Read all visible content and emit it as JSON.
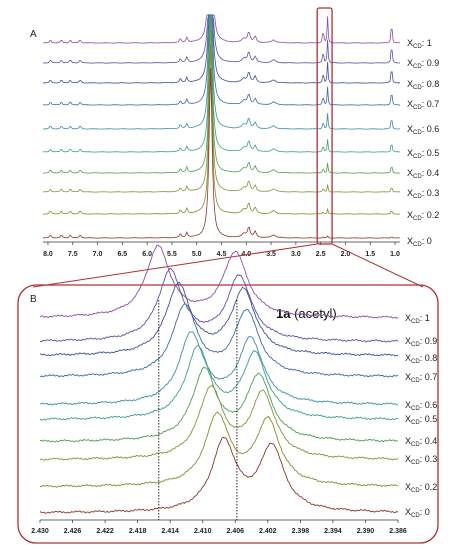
{
  "chart_data": [
    {
      "panel": "A",
      "type": "line",
      "xlim": [
        8.1,
        0.9
      ],
      "xticks": [
        "8.0",
        "7.5",
        "7.0",
        "6.5",
        "6.0",
        "5.5",
        "5.0",
        "4.5",
        "4.0",
        "3.5",
        "3.0",
        "2.5",
        "2.0",
        "1.5",
        "1.0"
      ],
      "series": [
        {
          "name": "1",
          "color": "#8e4ea6"
        },
        {
          "name": "0.9",
          "color": "#5f4fa6"
        },
        {
          "name": "0.8",
          "color": "#3f4f9a"
        },
        {
          "name": "0.7",
          "color": "#3f6aa8"
        },
        {
          "name": "0.6",
          "color": "#3d8ea8"
        },
        {
          "name": "0.5",
          "color": "#3f9f86"
        },
        {
          "name": "0.4",
          "color": "#4f9f56"
        },
        {
          "name": "0.3",
          "color": "#7a9a3a"
        },
        {
          "name": "0.2",
          "color": "#8a8a30"
        },
        {
          "name": "0",
          "color": "#8a3a2a"
        }
      ]
    },
    {
      "panel": "B",
      "type": "line",
      "title_bold": "1a",
      "title_rest": " (acetyl)",
      "xlim": [
        2.43,
        2.386
      ],
      "xticks": [
        "2.430",
        "2.426",
        "2.422",
        "2.418",
        "2.414",
        "2.410",
        "2.406",
        "2.402",
        "2.398",
        "2.394",
        "2.390",
        "2.386"
      ],
      "dotted_lines_x": [
        2.4154,
        2.4058
      ],
      "peaks": [
        {
          "label": "1",
          "color": "#8e4ea6",
          "p1": 2.4155,
          "p2": 2.406
        },
        {
          "label": "0.9",
          "color": "#5f4fa6",
          "p1": 2.414,
          "p2": 2.4055
        },
        {
          "label": "0.8",
          "color": "#3f4f9a",
          "p1": 2.413,
          "p2": 2.405
        },
        {
          "label": "0.7",
          "color": "#3f6aa8",
          "p1": 2.4122,
          "p2": 2.4046
        },
        {
          "label": "0.6",
          "color": "#3d8ea8",
          "p1": 2.4114,
          "p2": 2.4041
        },
        {
          "label": "0.5",
          "color": "#3f9f86",
          "p1": 2.4106,
          "p2": 2.4036
        },
        {
          "label": "0.4",
          "color": "#4f9f56",
          "p1": 2.4098,
          "p2": 2.4031
        },
        {
          "label": "0.3",
          "color": "#7a9a3a",
          "p1": 2.409,
          "p2": 2.4026
        },
        {
          "label": "0.2",
          "color": "#8a8a30",
          "p1": 2.4082,
          "p2": 2.402
        },
        {
          "label": "0",
          "color": "#8a3a2a",
          "p1": 2.4074,
          "p2": 2.4015
        }
      ]
    }
  ],
  "labels": {
    "panel_a": "A",
    "panel_b": "B",
    "xcd_main": "X",
    "xcd_sub": "CD",
    "xcd_sep": ": "
  },
  "colors": {
    "highlight": "#b03030",
    "frame": "#b03030",
    "axis": "#333333"
  }
}
